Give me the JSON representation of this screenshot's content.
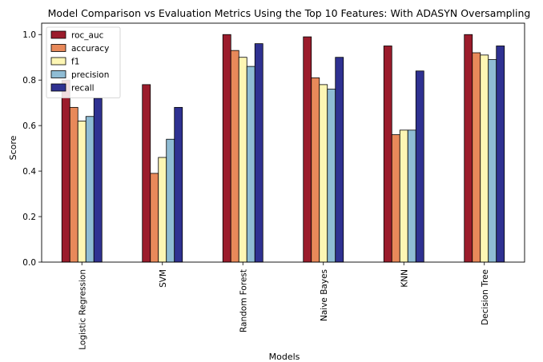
{
  "chart_data": {
    "type": "bar",
    "title": "Model Comparison vs Evaluation Metrics Using the Top 10 Features: With ADASYN Oversampling",
    "xlabel": "Models",
    "ylabel": "Score",
    "ylim": [
      0,
      1.05
    ],
    "yticks": [
      "0.0",
      "0.2",
      "0.4",
      "0.6",
      "0.8",
      "1.0"
    ],
    "grid": false,
    "legend_position": "top-left",
    "categories": [
      "Logistic Regression",
      "SVM",
      "Random Forest",
      "Naive Bayes",
      "KNN",
      "Decision Tree"
    ],
    "series": [
      {
        "name": "roc_auc",
        "color": "#9b1c2c",
        "values": [
          0.8,
          0.78,
          1.0,
          0.99,
          0.95,
          1.0
        ]
      },
      {
        "name": "accuracy",
        "color": "#e8895a",
        "values": [
          0.68,
          0.39,
          0.93,
          0.81,
          0.56,
          0.92
        ]
      },
      {
        "name": "f1",
        "color": "#fdf6b4",
        "values": [
          0.62,
          0.46,
          0.9,
          0.78,
          0.58,
          0.91
        ]
      },
      {
        "name": "precision",
        "color": "#8fbcd4",
        "values": [
          0.64,
          0.54,
          0.86,
          0.76,
          0.58,
          0.89
        ]
      },
      {
        "name": "recall",
        "color": "#2f3191",
        "values": [
          0.72,
          0.68,
          0.96,
          0.9,
          0.84,
          0.95
        ]
      }
    ]
  }
}
